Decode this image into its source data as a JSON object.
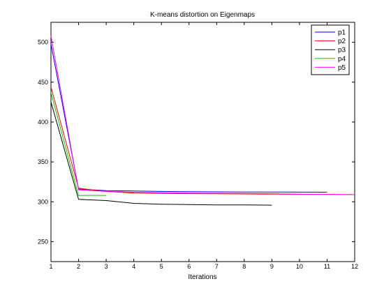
{
  "chart_data": {
    "type": "line",
    "title": "K-means distortion on Eigenmaps",
    "xlabel": "Iterations",
    "ylabel": "",
    "xlim": [
      1,
      12
    ],
    "ylim": [
      225,
      525
    ],
    "xticks": [
      1,
      2,
      3,
      4,
      5,
      6,
      7,
      8,
      9,
      10,
      11,
      12
    ],
    "yticks": [
      250,
      300,
      350,
      400,
      450,
      500
    ],
    "grid": false,
    "legend_position": "top-right",
    "series": [
      {
        "name": "p1",
        "color": "#0000ff",
        "x": [
          1,
          2,
          3,
          4,
          5,
          6,
          7,
          8,
          9,
          10,
          11
        ],
        "y": [
          498,
          316,
          314,
          313.5,
          313,
          312.7,
          312.5,
          312.3,
          312.2,
          312.1,
          312
        ]
      },
      {
        "name": "p2",
        "color": "#ff0000",
        "x": [
          1,
          2,
          3,
          4,
          5,
          6,
          7,
          8,
          9,
          10,
          11,
          12
        ],
        "y": [
          444,
          317,
          313,
          311,
          310.5,
          310.2,
          310,
          309.8,
          309.6,
          309.4,
          309.2,
          309
        ]
      },
      {
        "name": "p3",
        "color": "#000000",
        "x": [
          1,
          2,
          3,
          4,
          5,
          6,
          7,
          8,
          9
        ],
        "y": [
          425,
          303,
          301.5,
          298,
          297,
          296.5,
          296,
          296,
          295.8
        ]
      },
      {
        "name": "p4",
        "color": "#00cc00",
        "x": [
          1,
          2,
          3
        ],
        "y": [
          437,
          308,
          308
        ]
      },
      {
        "name": "p5",
        "color": "#ff00ff",
        "x": [
          1,
          2,
          3,
          4,
          5,
          6,
          7,
          8,
          9,
          10,
          11,
          12
        ],
        "y": [
          508,
          315,
          313,
          312,
          311.5,
          311,
          310.7,
          310.4,
          310.1,
          309.7,
          309.3,
          309
        ]
      }
    ]
  }
}
